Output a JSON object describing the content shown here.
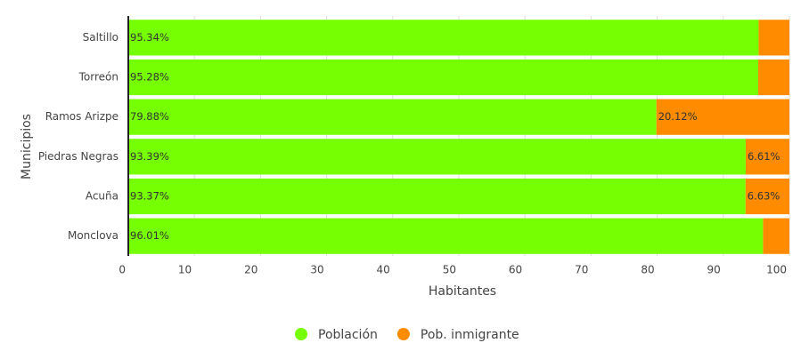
{
  "chart_data": {
    "type": "bar",
    "orientation": "horizontal",
    "stacked": true,
    "y_axis_label": "Municipios",
    "x_axis_label": "Habitantes",
    "categories": [
      "Saltillo",
      "Torreón",
      "Ramos Arizpe",
      "Piedras Negras",
      "Acuña",
      "Monclova"
    ],
    "series": [
      {
        "name": "Población",
        "color": "#76ff03",
        "values": [
          95.34,
          95.28,
          79.88,
          93.39,
          93.37,
          96.01
        ],
        "value_labels": [
          "95.34%",
          "95.28%",
          "79.88%",
          "93.39%",
          "93.37%",
          "96.01%"
        ]
      },
      {
        "name": "Pob. inmigrante",
        "color": "#ff8c00",
        "values": [
          4.66,
          4.72,
          20.12,
          6.61,
          6.63,
          3.99
        ],
        "value_labels": [
          null,
          null,
          "20.12%",
          "6.61%",
          "6.63%",
          null
        ]
      }
    ],
    "xlim": [
      0,
      100
    ],
    "xticks": [
      0,
      10,
      20,
      30,
      40,
      50,
      60,
      70,
      80,
      90,
      100
    ],
    "grid": true,
    "legend": "bottom"
  }
}
